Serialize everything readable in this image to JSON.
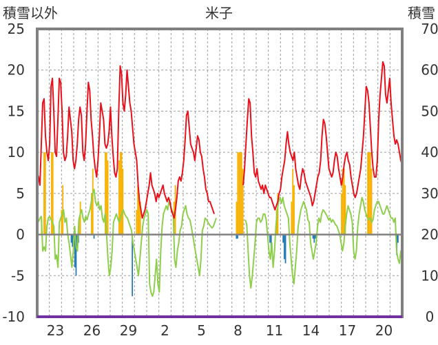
{
  "chart_data": {
    "type": "line",
    "title": "米子",
    "left_axis_label": "積雪以外",
    "right_axis_label": "積雪",
    "y_left": {
      "min": -10,
      "max": 25,
      "ticks": [
        "25",
        "20",
        "15",
        "10",
        "5",
        "0",
        "-5",
        "-10"
      ]
    },
    "y_right": {
      "min": 0,
      "max": 70,
      "ticks": [
        "70",
        "60",
        "50",
        "40",
        "30",
        "20",
        "10",
        "0"
      ]
    },
    "x_ticks": [
      "23",
      "26",
      "29",
      "2",
      "5",
      "8",
      "11",
      "14",
      "17",
      "20"
    ],
    "grid": true,
    "series": [
      {
        "color": "#e8101a",
        "values": [
          7.5,
          7,
          6,
          11,
          16,
          16.5,
          12,
          10,
          9,
          11,
          18,
          19,
          15,
          10,
          9.5,
          14,
          19,
          18.5,
          15,
          10,
          9,
          9.5,
          12,
          15.5,
          14,
          12.5,
          9,
          8,
          9,
          11,
          14,
          15.5,
          14.5,
          10,
          9,
          11,
          15,
          18.5,
          17.5,
          14,
          12,
          9.5,
          8,
          7,
          9,
          12,
          16,
          15,
          14,
          11,
          10.5,
          11,
          12.5,
          15.5,
          12,
          9.5,
          7.5,
          7,
          8,
          15,
          20.5,
          19.5,
          16,
          15,
          17,
          20,
          18,
          16,
          15,
          13,
          11,
          10,
          9,
          6,
          4,
          3,
          2,
          2.5,
          3,
          4,
          5,
          6,
          7.5,
          6,
          5.5,
          5,
          4,
          5,
          4.5,
          5,
          5.5,
          6,
          5,
          4.5,
          4,
          4.5,
          4,
          3,
          2.5,
          2,
          3,
          4.5,
          6.5,
          7,
          6.5,
          7.5,
          9,
          11.5,
          14.5,
          15,
          13,
          11,
          10.5,
          10,
          9,
          10.5,
          12,
          11.5,
          10,
          9.5,
          8,
          7,
          5.5,
          5,
          4,
          4,
          3.5,
          3,
          2.5,
          null,
          null,
          null,
          null,
          null,
          null,
          null,
          null,
          null,
          null,
          null,
          null,
          null,
          null,
          null,
          null,
          null,
          null,
          null,
          null,
          6,
          8,
          11,
          14,
          16.5,
          16,
          12,
          10,
          7.5,
          7,
          8,
          6.5,
          6,
          5.5,
          6,
          5,
          6,
          5.5,
          5,
          4.5,
          4.5,
          4,
          3.5,
          3,
          3.5,
          4,
          5,
          5.5,
          7,
          8,
          9,
          11,
          12.5,
          11,
          10,
          9.5,
          9,
          10,
          8,
          7,
          6,
          5.5,
          7,
          8,
          7.5,
          6.5,
          6,
          5.5,
          5,
          4.5,
          3.5,
          4,
          5,
          6,
          7,
          7.5,
          9,
          12,
          14,
          13.5,
          12,
          10,
          8,
          7.5,
          7,
          7.5,
          9,
          10,
          9.5,
          8,
          7,
          6,
          7,
          8.5,
          9.5,
          10,
          9,
          8.5,
          7,
          6,
          5,
          4.5,
          5,
          6,
          7,
          8,
          10,
          12,
          15,
          18,
          17.5,
          16,
          13,
          10,
          8,
          7,
          7,
          9,
          14,
          17,
          19,
          21,
          20.5,
          17,
          16,
          17.5,
          19,
          16,
          14,
          12,
          11,
          11.5,
          11,
          10,
          9,
          8.5
        ]
      },
      {
        "color": "#8dcf4a",
        "values": [
          1.5,
          1.6,
          2,
          2.2,
          -2,
          -1.5,
          -2,
          1,
          2,
          2.2,
          1.8,
          1.5,
          1,
          -3,
          -2.5,
          -4,
          1.5,
          2,
          2.5,
          3,
          1.5,
          2,
          0,
          -1,
          -2.5,
          -4,
          -2,
          1,
          -1.5,
          -2,
          1.8,
          2.5,
          3,
          2,
          1.5,
          2.2,
          1.8,
          2.5,
          3,
          4,
          5,
          5.5,
          4,
          3.5,
          4,
          3,
          3.5,
          2,
          1.5,
          2.5,
          0,
          -3,
          -5,
          -4,
          -2,
          1.5,
          2,
          2.5,
          2,
          1.5,
          2,
          2.5,
          3,
          2.5,
          2.2,
          2,
          1.5,
          1,
          0.5,
          -1,
          -2,
          -3,
          -4,
          -5,
          -3,
          -1,
          1,
          2,
          2.5,
          3,
          2.5,
          -6,
          -7,
          -7.5,
          -7,
          -5,
          -3,
          -6,
          -7,
          -2,
          1,
          2.5,
          3,
          3.5,
          3,
          4,
          3.5,
          3,
          2.5,
          -3,
          -4,
          -2,
          -1,
          0.5,
          1,
          2.5,
          3,
          3.5,
          2.5,
          2,
          1.8,
          1,
          0,
          -1,
          -2,
          -3,
          -4,
          -5,
          -3,
          0.5,
          1,
          2,
          1.8,
          1.5,
          1.2,
          1,
          0.8,
          1,
          1.5,
          2,
          null,
          null,
          null,
          null,
          null,
          null,
          null,
          null,
          null,
          null,
          null,
          null,
          null,
          null,
          null,
          null,
          null,
          null,
          null,
          null,
          1.8,
          1.2,
          -2,
          -5,
          -6.5,
          -5,
          -3,
          -1,
          1.5,
          2,
          2,
          1.5,
          1.8,
          2.5,
          2.5,
          1.8,
          0,
          -2,
          -3,
          -1,
          -4,
          -2,
          1,
          3,
          4,
          4.5,
          3.8,
          4.5,
          3.5,
          3,
          2.5,
          2,
          -1,
          -3,
          -5,
          -6,
          -4,
          -2,
          1,
          2,
          3,
          3.5,
          4,
          3.5,
          3,
          1.8,
          1.5,
          -1,
          -2,
          -3,
          -2,
          -1,
          1,
          2,
          1.5,
          2.5,
          3,
          2.8,
          2.5,
          2.2,
          1.8,
          2,
          1.5,
          1.8,
          1.5,
          1.2,
          1,
          0.5,
          0,
          -1,
          -2,
          -1,
          1,
          2.5,
          3.5,
          3,
          2.5,
          1.5,
          -2,
          -3,
          -2,
          1,
          2.5,
          3.5,
          4.5,
          4,
          3,
          2.5,
          2,
          1.8,
          2,
          1.5,
          1.8,
          3,
          3.5,
          4,
          4,
          3.5,
          3,
          2.5,
          2.5,
          3,
          3.5,
          3,
          2.5,
          2,
          2,
          1.5,
          2,
          -2,
          -3,
          -3.5,
          -2,
          -2
        ]
      }
    ],
    "bars": [
      {
        "color": "#f7b100",
        "values": [
          0,
          0,
          0,
          2,
          0,
          10,
          10,
          0,
          0,
          0,
          0,
          10,
          10,
          0,
          0,
          0,
          0,
          0,
          0,
          3,
          6,
          0,
          0,
          0,
          0,
          0,
          0,
          0,
          0,
          0,
          0,
          0,
          0,
          2,
          4,
          0,
          0,
          0,
          0,
          0,
          0,
          0,
          0,
          5,
          8,
          0,
          0,
          0,
          0,
          0,
          0,
          0,
          0,
          0,
          10,
          10,
          9,
          0,
          0,
          0,
          0,
          0,
          0,
          0,
          0,
          9,
          10,
          10,
          8,
          0,
          0,
          0,
          0,
          0,
          0,
          0,
          0,
          0,
          0,
          3,
          6,
          5,
          4,
          0,
          0,
          0,
          0,
          0,
          0,
          0,
          0,
          0,
          0,
          0,
          0,
          0,
          0,
          0,
          0,
          0,
          0,
          0,
          0,
          0,
          0,
          0,
          0,
          0,
          0,
          4,
          6,
          0,
          0,
          0,
          0,
          0,
          0,
          0,
          0,
          0,
          0,
          0,
          0,
          0,
          0,
          0,
          0,
          0,
          0,
          0,
          0,
          0,
          0,
          0,
          0,
          0,
          0,
          0,
          0,
          0,
          0,
          0,
          0,
          0,
          0,
          0,
          0,
          0,
          0,
          0,
          0,
          0,
          0,
          0,
          0,
          0,
          0,
          0,
          0,
          4,
          10,
          10,
          10,
          10,
          8,
          0,
          0,
          0,
          0,
          0,
          0,
          0,
          0,
          0,
          0,
          0,
          0,
          0,
          0,
          0,
          0,
          0,
          0,
          0,
          0,
          0,
          0,
          0,
          0,
          0,
          0,
          3,
          5,
          0,
          0,
          0,
          0,
          0,
          0,
          0,
          0,
          0,
          0,
          4,
          8,
          6,
          0,
          0,
          0,
          0,
          0,
          0,
          0,
          0,
          0,
          0,
          0,
          0,
          0,
          0,
          0,
          0,
          0,
          0,
          0,
          0,
          0,
          0,
          0,
          0,
          0,
          0,
          0,
          0,
          0,
          0,
          0,
          0,
          0,
          0,
          0,
          0,
          0,
          5,
          8,
          8,
          6,
          0,
          0,
          0,
          0,
          0,
          0,
          0,
          0,
          0,
          0,
          0,
          0,
          0,
          0,
          0,
          0,
          0,
          10,
          10,
          10,
          8,
          0,
          0,
          0,
          0,
          0,
          0,
          0,
          0,
          0,
          0,
          0,
          0,
          0,
          0,
          0,
          0,
          0,
          0,
          0,
          0,
          0,
          0,
          0,
          0
        ]
      },
      {
        "color": "#1f77b4",
        "values": [
          0,
          0,
          0,
          0,
          0,
          0,
          0,
          0,
          0,
          0,
          0,
          0,
          0,
          0,
          0,
          0,
          0,
          0,
          0,
          0,
          0,
          0,
          0,
          0,
          0,
          0,
          0,
          0,
          -1,
          -1.5,
          -0.5,
          -4,
          -5,
          -2,
          -1,
          0,
          0,
          0,
          0,
          0,
          0,
          0,
          0,
          0,
          0,
          0,
          0,
          -0.5,
          0,
          0,
          0,
          0,
          0,
          0,
          0,
          0,
          0,
          0,
          0,
          0,
          0,
          0,
          0,
          0,
          0,
          0,
          0,
          0,
          0,
          0,
          0,
          0,
          0,
          0,
          0,
          0,
          0,
          0,
          0,
          -7.5,
          0,
          0,
          0,
          0,
          0,
          0,
          0,
          0,
          0,
          0,
          0,
          0,
          0,
          0,
          0,
          0,
          0,
          0,
          0,
          0,
          0,
          0,
          0,
          0,
          0,
          0,
          0,
          0,
          0,
          0,
          0,
          0,
          0,
          0,
          0,
          0,
          0,
          0,
          0,
          0,
          0,
          0,
          0,
          0,
          0,
          0,
          0,
          0,
          0,
          0,
          0,
          0,
          0,
          0,
          0,
          0,
          0,
          0,
          0,
          0,
          0,
          0,
          0,
          0,
          0,
          0,
          0,
          0,
          0,
          0,
          0,
          0,
          0,
          0,
          0,
          0,
          0,
          0,
          0,
          0,
          0,
          0,
          0,
          0,
          0,
          0,
          -0.5,
          -0.5,
          0,
          0,
          0,
          0,
          0,
          0,
          0,
          0,
          0,
          0,
          0,
          0,
          0,
          0,
          0,
          0,
          0,
          0,
          0,
          0,
          0,
          0,
          0,
          0,
          0,
          0,
          -1,
          -2,
          0,
          0,
          0,
          0,
          0,
          0,
          0,
          0,
          0,
          -1,
          -3,
          -3.5,
          0,
          0,
          0,
          0,
          0,
          0,
          0,
          0,
          0,
          0,
          0,
          0,
          0,
          0,
          0,
          0,
          0,
          0,
          0,
          0,
          0,
          0,
          -0.5,
          -1,
          -0.5,
          0,
          0,
          0,
          0,
          0,
          0,
          0,
          0,
          0,
          0,
          0,
          0,
          0,
          0,
          0,
          0,
          0,
          0,
          0,
          0,
          0,
          0,
          0,
          0,
          0,
          0,
          0,
          0,
          0,
          0,
          0,
          0,
          0,
          0,
          0,
          0,
          0,
          0,
          0,
          0,
          0,
          0,
          0,
          0,
          0,
          0,
          0,
          0,
          0,
          0,
          0,
          0,
          0,
          0,
          0,
          0,
          0,
          0,
          0,
          0,
          0,
          0,
          0,
          0,
          0,
          0,
          0,
          -2.5,
          -1,
          0,
          0,
          0
        ]
      }
    ],
    "snow_series": {
      "color": "#7030a0",
      "values_right_axis": [
        0
      ]
    }
  }
}
